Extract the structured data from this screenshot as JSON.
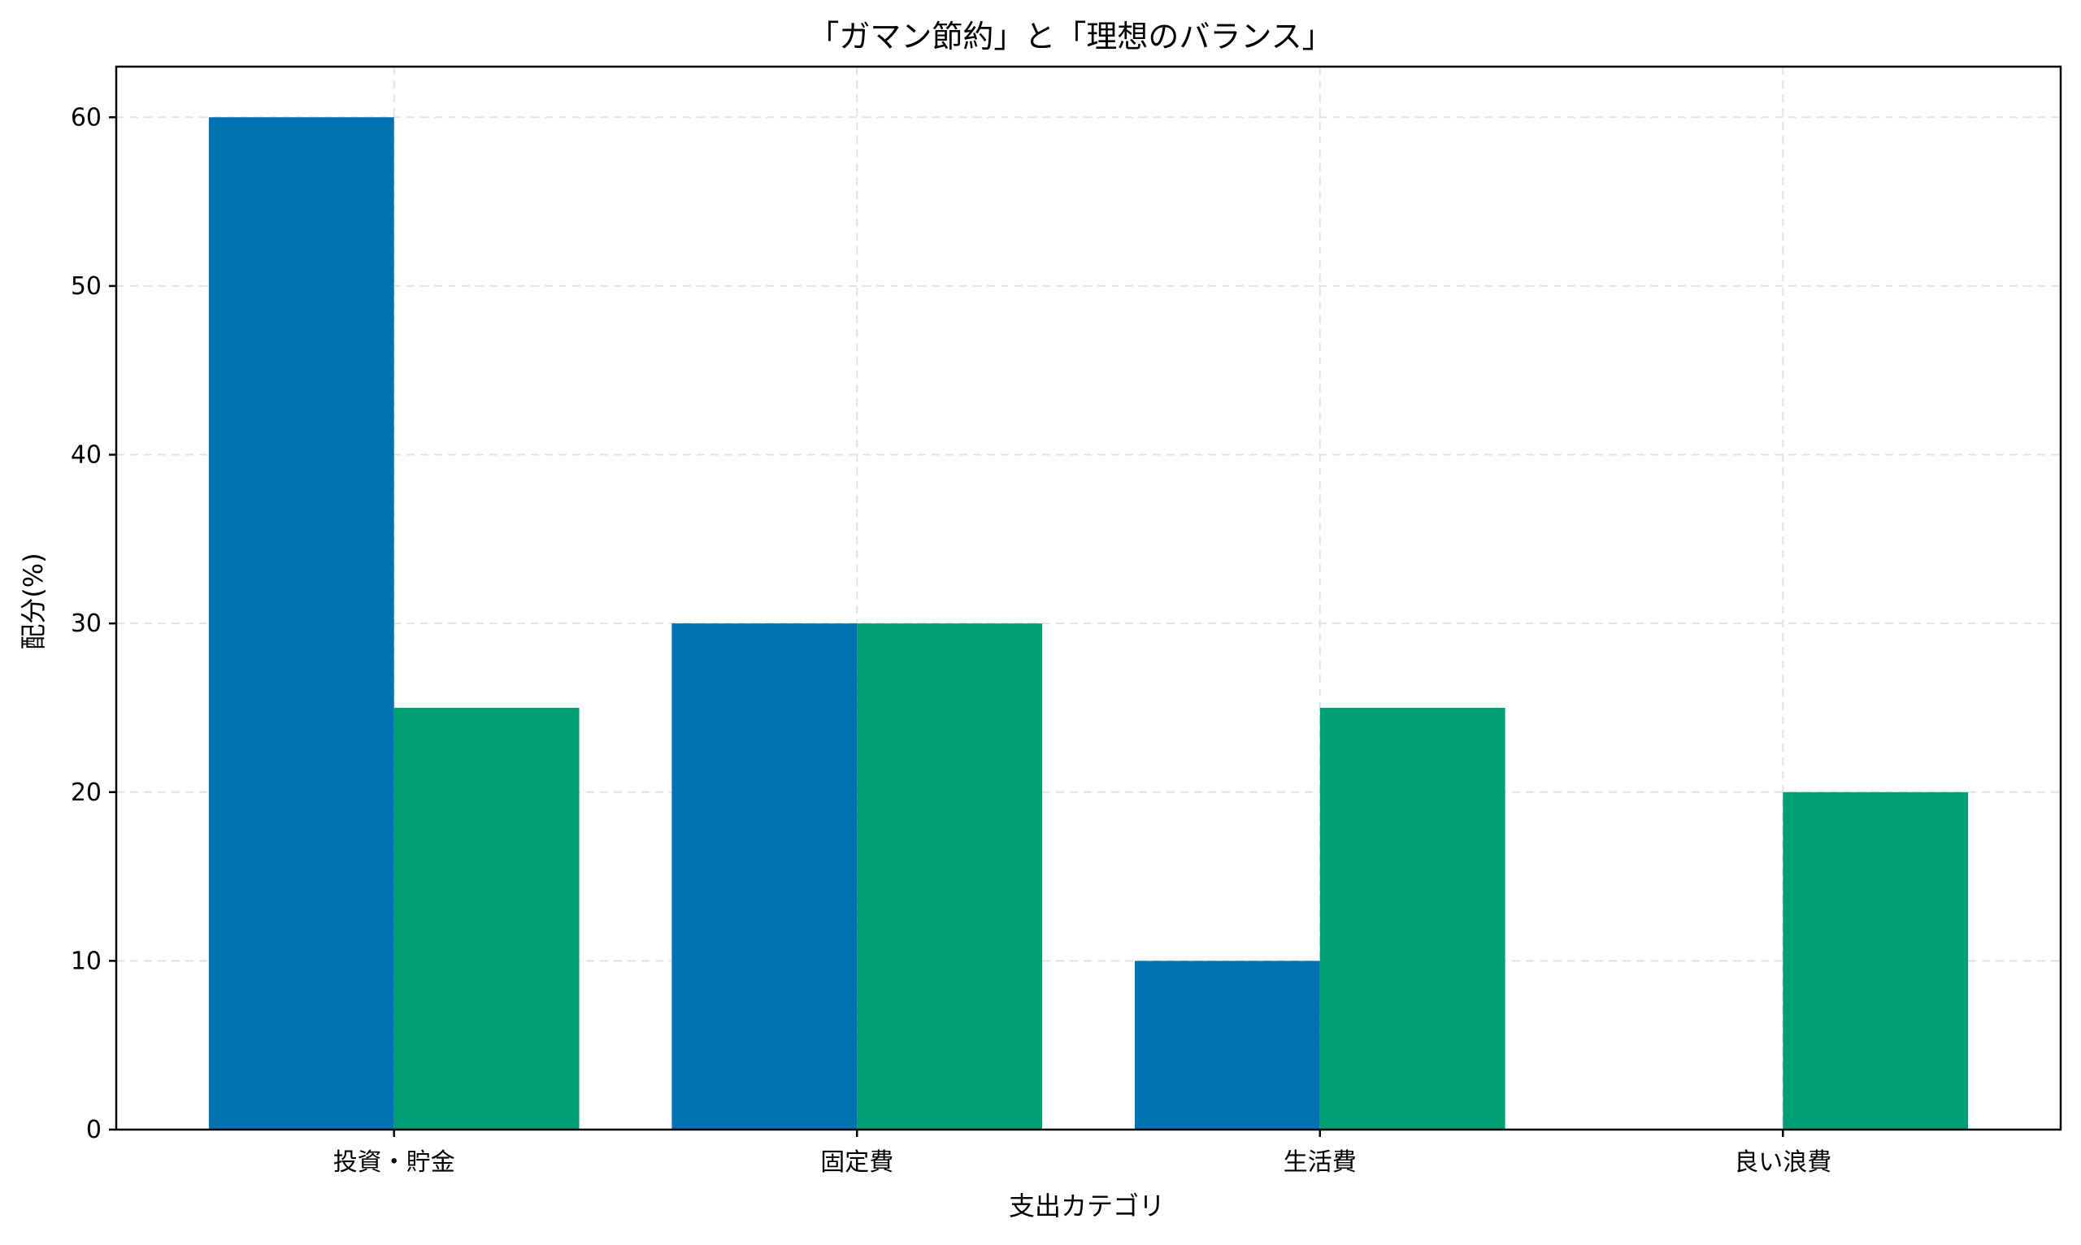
{
  "chart_data": {
    "type": "bar",
    "title": "「ガマン節約」と「理想のバランス」",
    "xlabel": "支出カテゴリ",
    "ylabel": "配分(%)",
    "categories": [
      "投資・貯金",
      "固定費",
      "生活費",
      "良い浪費"
    ],
    "series": [
      {
        "values": [
          60,
          30,
          10,
          0
        ],
        "color": "#0072b2"
      },
      {
        "values": [
          25,
          30,
          25,
          20
        ],
        "color": "#009e73"
      }
    ],
    "ylim": [
      0,
      63
    ],
    "yticks": [
      0,
      10,
      20,
      30,
      40,
      50,
      60
    ],
    "grid": true,
    "legend": "none"
  }
}
